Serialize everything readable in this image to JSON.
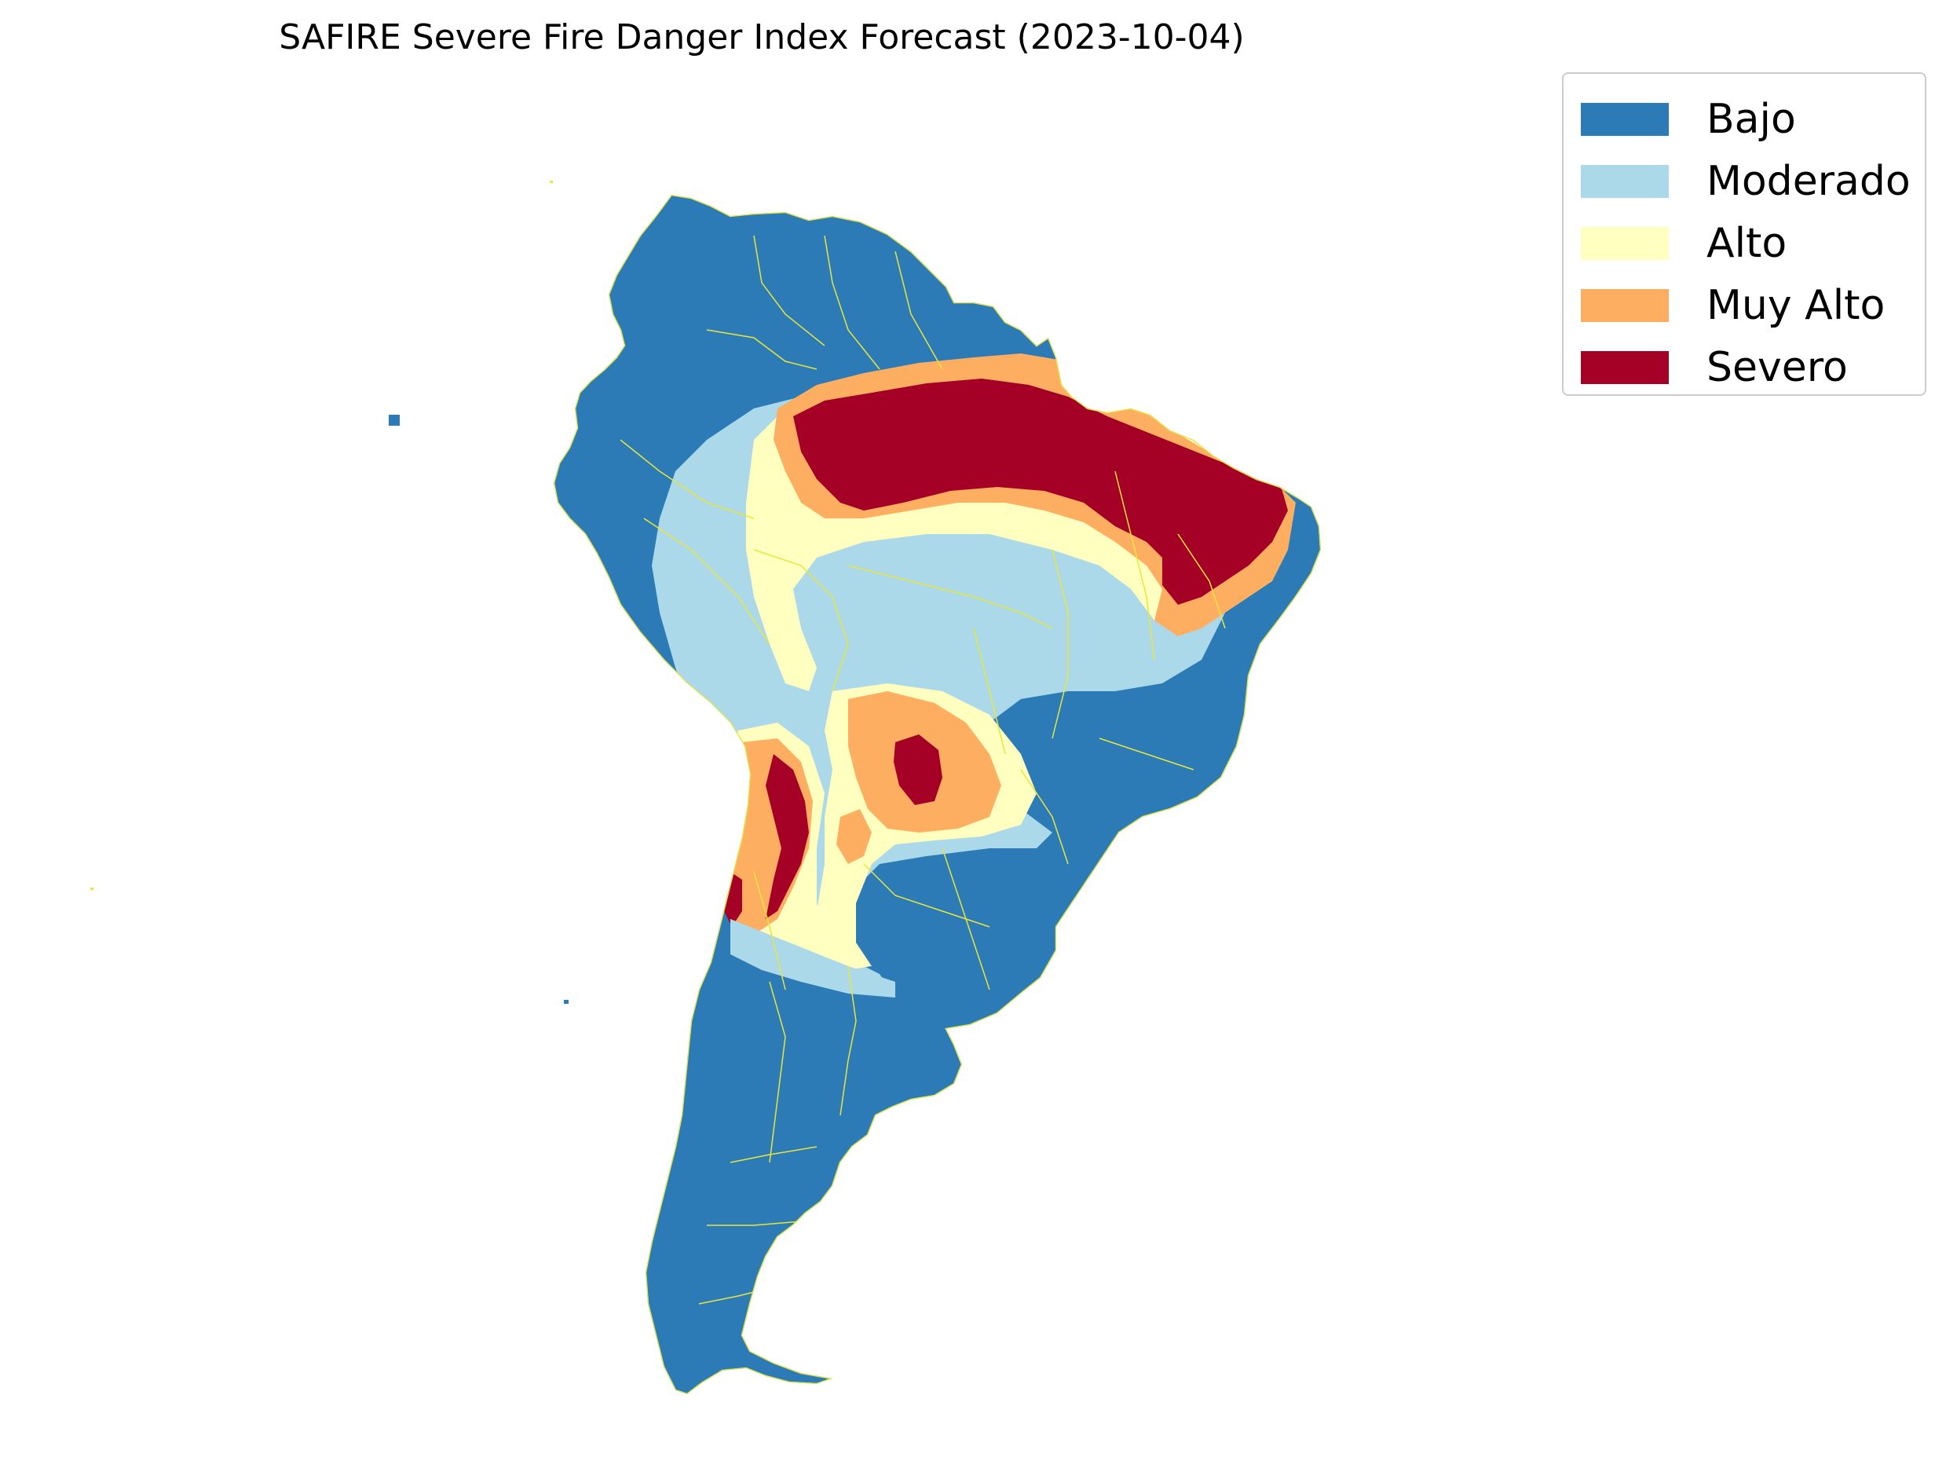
{
  "title": "SAFIRE Severe Fire Danger Index Forecast (2023-10-04)",
  "legend": {
    "items": [
      {
        "label": "Bajo",
        "color": "#2c7bb6"
      },
      {
        "label": "Moderado",
        "color": "#abd9e9"
      },
      {
        "label": "Alto",
        "color": "#ffffbf"
      },
      {
        "label": "Muy Alto",
        "color": "#fdae61"
      },
      {
        "label": "Severo",
        "color": "#a50026"
      }
    ]
  },
  "map": {
    "region": "South America",
    "border_color": "#e6e63c"
  }
}
